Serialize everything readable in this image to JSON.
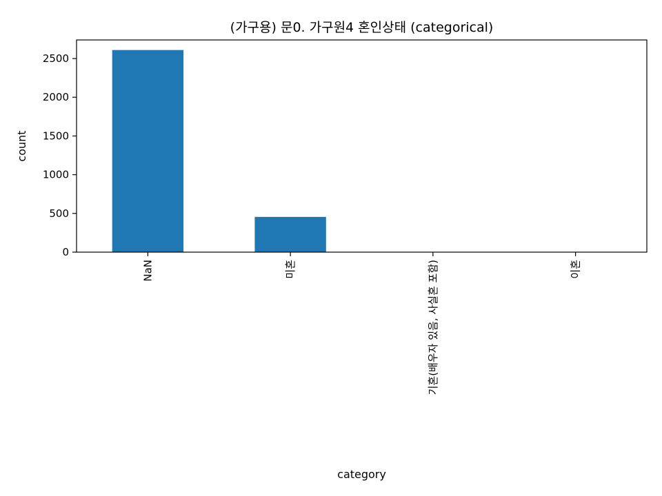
{
  "chart_data": {
    "type": "bar",
    "title": "(가구용) 문0. 가구원4 혼인상태 (categorical)",
    "xlabel": "category",
    "ylabel": "count",
    "categories": [
      "NaN",
      "미혼",
      "기혼(배우자 있음, 사실혼 포함)",
      "이혼"
    ],
    "values": [
      2610,
      455,
      0,
      0
    ],
    "ylim": [
      0,
      2740
    ],
    "yticks": [
      0,
      500,
      1000,
      1500,
      2000,
      2500
    ],
    "bar_color": "#1f77b4",
    "grid": false,
    "legend": "none"
  }
}
